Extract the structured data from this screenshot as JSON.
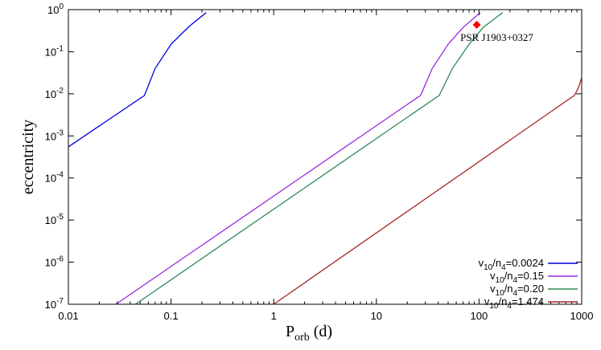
{
  "chart_data": {
    "type": "line",
    "title": "",
    "xlabel": {
      "main": "P",
      "sub": "orb",
      "unit": " (d)"
    },
    "ylabel": "eccentricity",
    "x_scale": "log",
    "y_scale": "log",
    "xlim": [
      0.01,
      1000
    ],
    "ylim": [
      1e-07,
      1
    ],
    "x_ticks": [
      {
        "value": 0.01,
        "label": "0.01"
      },
      {
        "value": 0.1,
        "label": "0.1"
      },
      {
        "value": 1,
        "label": "1"
      },
      {
        "value": 10,
        "label": "10"
      },
      {
        "value": 100,
        "label": "100"
      },
      {
        "value": 1000,
        "label": "1000"
      }
    ],
    "y_ticks": [
      {
        "value": 1e-07,
        "base": "10",
        "exp": "-7"
      },
      {
        "value": 1e-06,
        "base": "10",
        "exp": "-6"
      },
      {
        "value": 1e-05,
        "base": "10",
        "exp": "-5"
      },
      {
        "value": 0.0001,
        "base": "10",
        "exp": "-4"
      },
      {
        "value": 0.001,
        "base": "10",
        "exp": "-3"
      },
      {
        "value": 0.01,
        "base": "10",
        "exp": "-2"
      },
      {
        "value": 0.1,
        "base": "10",
        "exp": "-1"
      },
      {
        "value": 1,
        "base": "10",
        "exp": "0"
      }
    ],
    "grid": false,
    "legend_position": "bottom-right",
    "series": [
      {
        "legend": {
          "a": "v",
          "a_sub": "10",
          "b": "/n",
          "b_sub": "4",
          "c": "=0.0024"
        },
        "color": "#0000dd",
        "points": [
          [
            0.01,
            0.00055
          ],
          [
            0.055,
            0.0091
          ],
          [
            0.07,
            0.04
          ],
          [
            0.1,
            0.15
          ],
          [
            0.15,
            0.4
          ],
          [
            0.22,
            0.85
          ]
        ]
      },
      {
        "legend": {
          "a": "v",
          "a_sub": "10",
          "b": "/n",
          "b_sub": "4",
          "c": "=0.15"
        },
        "color": "#9a2ae0",
        "points": [
          [
            0.029,
            1e-07
          ],
          [
            27,
            0.0092
          ],
          [
            35,
            0.04
          ],
          [
            50,
            0.15
          ],
          [
            70,
            0.38
          ],
          [
            103,
            0.85
          ]
        ]
      },
      {
        "legend": {
          "a": "v",
          "a_sub": "10",
          "b": "/n",
          "b_sub": "4",
          "c": "=0.20"
        },
        "color": "#2e8b57",
        "points": [
          [
            0.045,
            1e-07
          ],
          [
            41,
            0.0092
          ],
          [
            55,
            0.04
          ],
          [
            80,
            0.15
          ],
          [
            110,
            0.38
          ],
          [
            170,
            0.85
          ]
        ]
      },
      {
        "legend": {
          "a": "v",
          "a_sub": "10",
          "b": "/n",
          "b_sub": "4",
          "c": "=1.474"
        },
        "color": "#a52a2a",
        "points": [
          [
            1.0,
            1e-07
          ],
          [
            850,
            0.0092
          ],
          [
            930,
            0.014
          ],
          [
            1000,
            0.024
          ]
        ]
      }
    ],
    "annotations": [
      {
        "label": "PSR J1903+0327",
        "x": 95,
        "y": 0.436,
        "marker": "diamond",
        "color": "#ff0000"
      }
    ]
  }
}
